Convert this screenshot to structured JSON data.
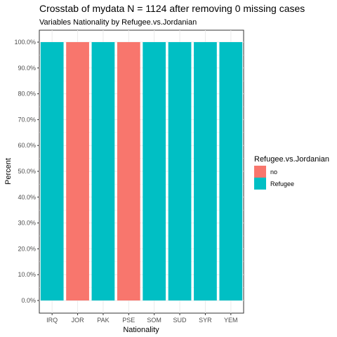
{
  "chart_data": {
    "type": "bar",
    "title": "Crosstab of mydata N = 1124 after removing 0 missing cases",
    "subtitle": "Variables Nationality by Refugee.vs.Jordanian",
    "xlabel": "Nationality",
    "ylabel": "Percent",
    "categories": [
      "IRQ",
      "JOR",
      "PAK",
      "PSE",
      "SOM",
      "SUD",
      "SYR",
      "YEM"
    ],
    "fill_group": [
      "Refugee",
      "no",
      "Refugee",
      "no",
      "Refugee",
      "Refugee",
      "Refugee",
      "Refugee"
    ],
    "values": [
      100,
      100,
      100,
      100,
      100,
      100,
      100,
      100
    ],
    "ylim": [
      0,
      100
    ],
    "yticks": [
      "0.0%",
      "10.0%",
      "20.0%",
      "30.0%",
      "40.0%",
      "50.0%",
      "60.0%",
      "70.0%",
      "80.0%",
      "90.0%",
      "100.0%"
    ],
    "legend": {
      "title": "Refugee.vs.Jordanian",
      "placement": "right",
      "entries": [
        {
          "label": "no",
          "color": "#F8766D"
        },
        {
          "label": "Refugee",
          "color": "#00BFC4"
        }
      ]
    },
    "grid": true
  }
}
